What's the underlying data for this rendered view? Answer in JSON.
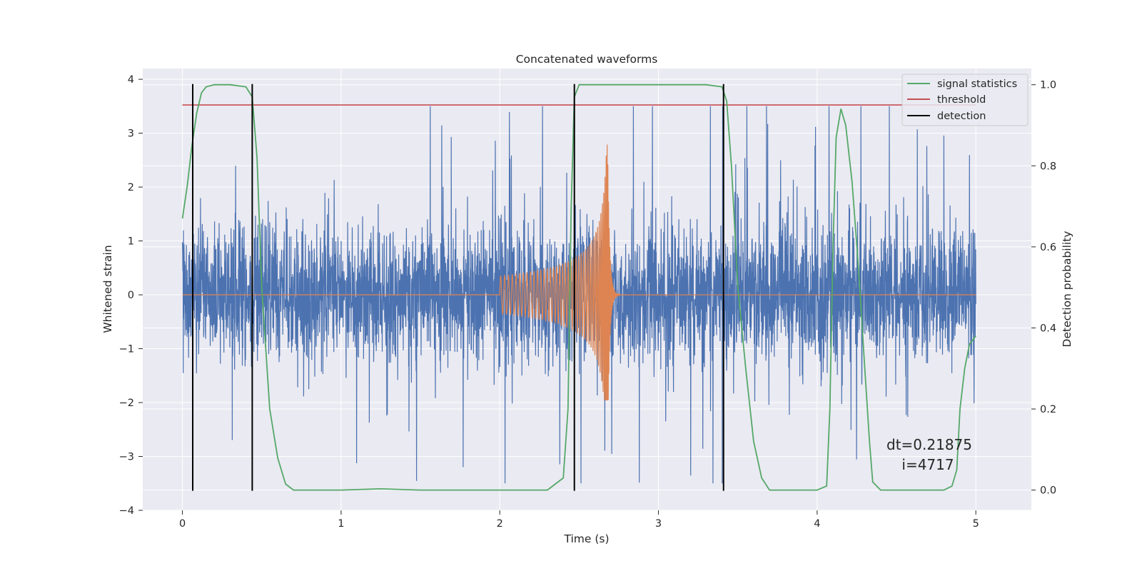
{
  "chart_data": {
    "type": "line",
    "title": "Concatenated waveforms",
    "xlabel": "Time (s)",
    "ylabel": "Whitened strain",
    "ylabel_right": "Detection probability",
    "xlim": [
      -0.25,
      5.35
    ],
    "ylim": [
      -4,
      4.2
    ],
    "ylim_right": [
      -0.05,
      1.04
    ],
    "x_ticks": [
      0,
      1,
      2,
      3,
      4,
      5
    ],
    "x_tick_labels": [
      "0",
      "1",
      "2",
      "3",
      "4",
      "5"
    ],
    "y_ticks": [
      -4,
      -3,
      -2,
      -1,
      0,
      1,
      2,
      3,
      4
    ],
    "y_tick_labels": [
      "−4",
      "−3",
      "−2",
      "−1",
      "0",
      "1",
      "2",
      "3",
      "4"
    ],
    "y_right_ticks": [
      0.0,
      0.2,
      0.4,
      0.6,
      0.8,
      1.0
    ],
    "y_right_tick_labels": [
      "0.0",
      "0.2",
      "0.4",
      "0.6",
      "0.8",
      "1.0"
    ],
    "grid": true,
    "legend_position": "top-right",
    "legend": [
      "signal statistics",
      "threshold",
      "detection"
    ],
    "colors": {
      "noise": "#4c72b0",
      "signal": "#dd8452",
      "statistics": "#55a868",
      "threshold": "#c44e52",
      "detection": "#000000",
      "background": "#eaeaf2",
      "grid": "#ffffff"
    },
    "noise_series": {
      "axis": "left",
      "x_range": [
        0,
        5
      ],
      "amplitude_core": 0.6,
      "amplitude_peak": 3.5
    },
    "signal_series": {
      "axis": "left",
      "start": 2.0,
      "merger": 2.68,
      "end": 2.8,
      "initial_amplitude": 0.35,
      "peak_amplitude": 2.85,
      "trough_amplitude": -1.95
    },
    "statistics_series": {
      "axis": "right",
      "x": [
        0.0,
        0.03,
        0.06,
        0.09,
        0.12,
        0.15,
        0.2,
        0.3,
        0.4,
        0.44,
        0.47,
        0.5,
        0.55,
        0.6,
        0.65,
        0.7,
        1.0,
        1.25,
        1.5,
        2.0,
        2.3,
        2.4,
        2.43,
        2.45,
        2.47,
        2.5,
        2.55,
        3.0,
        3.3,
        3.4,
        3.43,
        3.46,
        3.5,
        3.55,
        3.6,
        3.65,
        3.7,
        4.0,
        4.06,
        4.08,
        4.1,
        4.12,
        4.15,
        4.18,
        4.22,
        4.26,
        4.3,
        4.33,
        4.35,
        4.4,
        4.8,
        4.85,
        4.88,
        4.9,
        4.93,
        4.96,
        5.0
      ],
      "y": [
        0.67,
        0.75,
        0.85,
        0.93,
        0.98,
        0.995,
        1.0,
        1.0,
        0.995,
        0.97,
        0.82,
        0.5,
        0.2,
        0.08,
        0.015,
        0.0,
        0.0,
        0.003,
        0.0,
        0.0,
        0.0,
        0.03,
        0.2,
        0.7,
        0.97,
        1.0,
        1.0,
        1.0,
        1.0,
        0.995,
        0.96,
        0.8,
        0.5,
        0.3,
        0.12,
        0.03,
        0.0,
        0.0,
        0.01,
        0.2,
        0.6,
        0.87,
        0.94,
        0.9,
        0.76,
        0.55,
        0.3,
        0.12,
        0.02,
        0.0,
        0.0,
        0.01,
        0.05,
        0.2,
        0.3,
        0.36,
        0.38
      ]
    },
    "threshold": {
      "axis": "right",
      "value": 0.95,
      "x_range": [
        0,
        5
      ]
    },
    "detections": [
      0.065,
      0.44,
      2.47,
      3.41
    ],
    "annotation": {
      "line1": "dt=0.21875",
      "line2": "i=4717"
    }
  }
}
